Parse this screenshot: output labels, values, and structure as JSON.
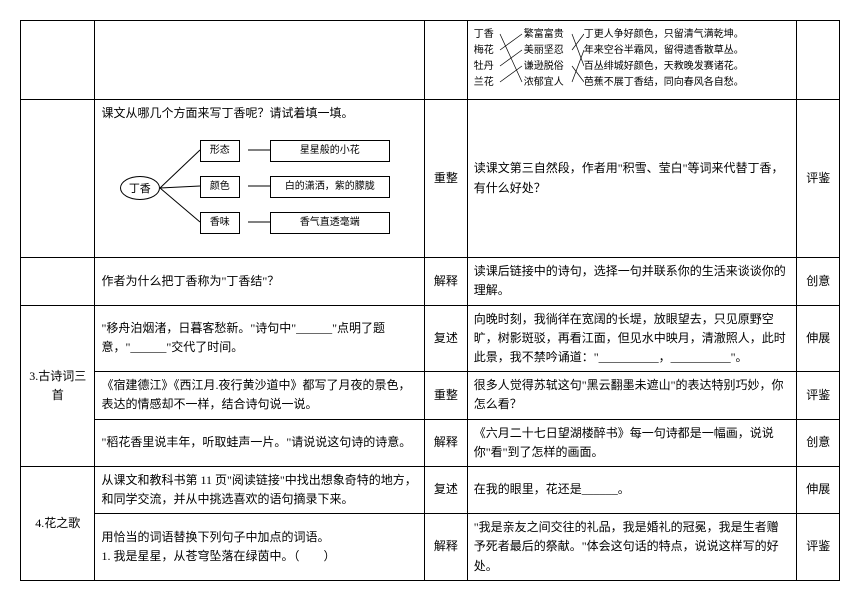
{
  "rows": [
    {
      "title": "",
      "left": "",
      "tag1": "",
      "right_type": "match",
      "match": {
        "left_items": [
          "丁香",
          "梅花",
          "牡丹",
          "兰花"
        ],
        "mid_items": [
          "繁富富贵",
          "美丽坚忍",
          "谦逊脱俗",
          "浓郁宜人"
        ],
        "right_items": [
          "丁更人争好颜色，只留清气满乾坤。",
          "年来空谷半霜风，留得遗香散草丛。",
          "百丛绯城好颜色，天教晚发赛诸花。",
          "芭蕉不展丁香结，同向春风各自愁。"
        ]
      },
      "tag2": ""
    },
    {
      "title": "",
      "left_type": "diagram",
      "left_heading": "课文从哪几个方面来写丁香呢？请试着填一填。",
      "diagram": {
        "root": "丁香",
        "branches": [
          {
            "label": "形态",
            "value": "星星般的小花"
          },
          {
            "label": "颜色",
            "value": "白的潇洒，紫的朦胧"
          },
          {
            "label": "香味",
            "value": "香气直透毫端"
          }
        ]
      },
      "tag1": "重整",
      "right": "读课文第三自然段，作者用\"积雪、莹白\"等词来代替丁香，有什么好处？",
      "tag2": "评鉴"
    },
    {
      "title": "",
      "left": "作者为什么把丁香称为\"丁香结\"？",
      "tag1": "解释",
      "right": "读课后链接中的诗句，选择一句并联系你的生活来谈谈你的理解。",
      "tag2": "创意"
    },
    {
      "title": "3.古诗词三首",
      "title_rowspan": 3,
      "left": "\"移舟泊烟渚，日暮客愁新。\"诗句中\"______\"点明了题意，\"______\"交代了时间。",
      "tag1": "复述",
      "right": "向晚时刻，我徜徉在宽阔的长堤，放眼望去，只见原野空旷，树影斑驳，再看江面，但见水中映月，清澈照人，此时此景，我不禁吟诵道：\"__________，__________\"。",
      "tag2": "伸展"
    },
    {
      "left": "《宿建德江》《西江月.夜行黄沙道中》都写了月夜的景色，表达的情感却不一样，结合诗句说一说。",
      "tag1": "重整",
      "right": "很多人觉得苏轼这句\"黑云翻墨未遮山\"的表达特别巧妙，你怎么看？",
      "tag2": "评鉴"
    },
    {
      "left": "\"稻花香里说丰年，听取蛙声一片。\"请说说这句诗的诗意。",
      "tag1": "解释",
      "right": "《六月二十七日望湖楼醉书》每一句诗都是一幅画，说说你\"看\"到了怎样的画面。",
      "tag2": "创意"
    },
    {
      "title": "4.花之歌",
      "title_rowspan": 2,
      "left": "从课文和教科书第 11 页\"阅读链接\"中找出想象奇特的地方，和同学交流，并从中挑选喜欢的语句摘录下来。",
      "tag1": "复述",
      "right": "在我的眼里，花还是______。",
      "tag2": "伸展"
    },
    {
      "left": "用恰当的词语替换下列句子中加点的词语。\n1. 我是星星，从苍穹坠落在绿茵中。（　　）",
      "tag1": "解释",
      "right": "\"我是亲友之间交往的礼品，我是婚礼的冠冕，我是生者赠予死者最后的祭献。\"体会这句话的特点，说说这样写的好处。",
      "tag2": "评鉴"
    }
  ]
}
